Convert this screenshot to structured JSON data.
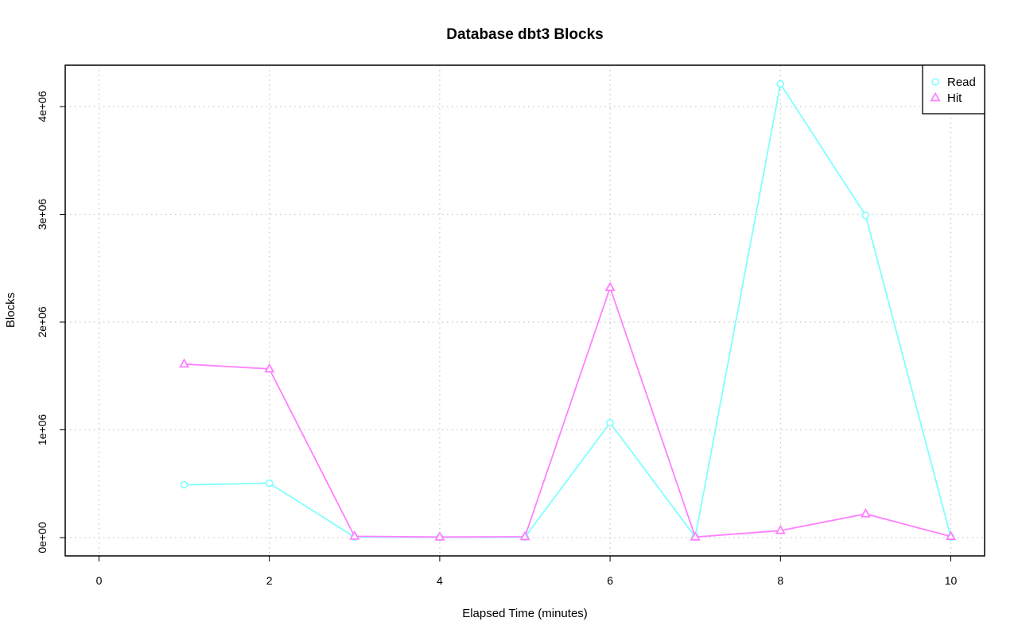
{
  "chart_data": {
    "type": "line",
    "title": "Database dbt3 Blocks",
    "xlabel": "Elapsed Time (minutes)",
    "ylabel": "Blocks",
    "xlim": [
      0,
      10
    ],
    "ylim": [
      0,
      4200000
    ],
    "x_ticks": [
      0,
      2,
      4,
      6,
      8,
      10
    ],
    "x_tick_labels": [
      "0",
      "2",
      "4",
      "6",
      "8",
      "10"
    ],
    "y_ticks": [
      0,
      1000000,
      2000000,
      3000000,
      4000000
    ],
    "y_tick_labels": [
      "0e+00",
      "1e+06",
      "2e+06",
      "3e+06",
      "4e+06"
    ],
    "grid": true,
    "legend_position": "top-right",
    "x": [
      1,
      2,
      3,
      4,
      5,
      6,
      7,
      8,
      9,
      10
    ],
    "series": [
      {
        "name": "Read",
        "color": "#80ffff",
        "marker": "circle",
        "values": [
          490000,
          505000,
          5000,
          2000,
          4000,
          1065000,
          5000,
          4210000,
          2990000,
          5000
        ]
      },
      {
        "name": "Hit",
        "color": "#ff80ff",
        "marker": "triangle",
        "values": [
          1610000,
          1565000,
          12000,
          5000,
          8000,
          2320000,
          5000,
          65000,
          220000,
          10000
        ]
      }
    ]
  }
}
